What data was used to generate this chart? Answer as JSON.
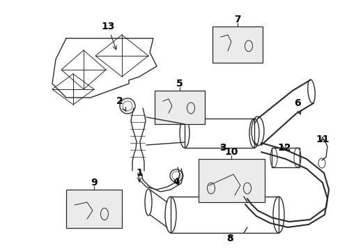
{
  "bg_color": "#ffffff",
  "line_color": "#2a2a2a",
  "label_color": "#000000",
  "figsize": [
    4.89,
    3.6
  ],
  "dpi": 100,
  "xlim": [
    0,
    489
  ],
  "ylim": [
    0,
    360
  ]
}
